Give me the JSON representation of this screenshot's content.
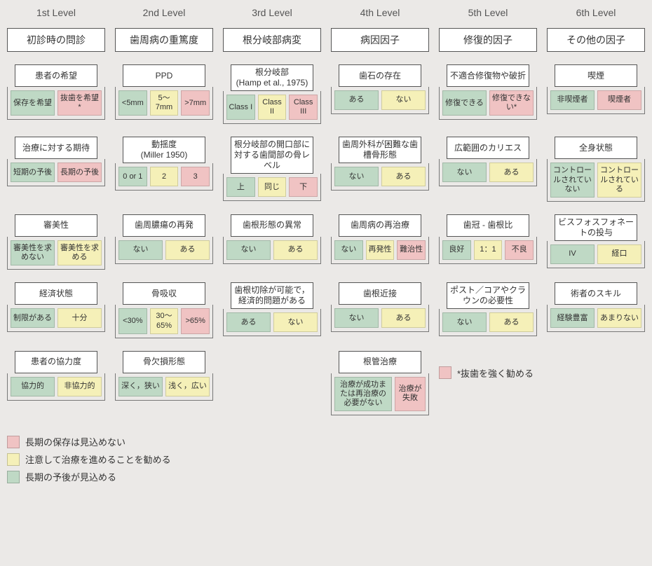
{
  "colors": {
    "green": "#bfd9c5",
    "yellow": "#f5f0b8",
    "red": "#f0c3c3",
    "bg": "#ebe9e7",
    "box_bg": "#ffffff",
    "border": "#555555"
  },
  "headers": [
    "1st Level",
    "2nd Level",
    "3rd Level",
    "4th Level",
    "5th Level",
    "6th Level"
  ],
  "levels": [
    "初診時の問診",
    "歯周病の重篤度",
    "根分岐部病変",
    "病因因子",
    "修復的因子",
    "その他の因子"
  ],
  "rows": [
    [
      {
        "title": "患者の希望",
        "opts": [
          {
            "t": "保存を希望",
            "c": "g"
          },
          {
            "t": "抜歯を希望*",
            "c": "r"
          }
        ]
      },
      {
        "title": "PPD",
        "opts": [
          {
            "t": "<5mm",
            "c": "g"
          },
          {
            "t": "5～7mm",
            "c": "y"
          },
          {
            "t": ">7mm",
            "c": "r"
          }
        ]
      },
      {
        "title": "根分岐部\n(Hamp et al., 1975)",
        "opts": [
          {
            "t": "Class I",
            "c": "g"
          },
          {
            "t": "Class II",
            "c": "y"
          },
          {
            "t": "Class III",
            "c": "r"
          }
        ]
      },
      {
        "title": "歯石の存在",
        "opts": [
          {
            "t": "ある",
            "c": "g"
          },
          {
            "t": "ない",
            "c": "y"
          }
        ]
      },
      {
        "title": "不適合修復物や破折",
        "opts": [
          {
            "t": "修復できる",
            "c": "g"
          },
          {
            "t": "修復できない*",
            "c": "r"
          }
        ]
      },
      {
        "title": "喫煙",
        "opts": [
          {
            "t": "非喫煙者",
            "c": "g"
          },
          {
            "t": "喫煙者",
            "c": "r"
          }
        ]
      }
    ],
    [
      {
        "title": "治療に対する期待",
        "opts": [
          {
            "t": "短期の予後",
            "c": "g"
          },
          {
            "t": "長期の予後",
            "c": "r"
          }
        ]
      },
      {
        "title": "動揺度\n(Miller 1950)",
        "opts": [
          {
            "t": "0 or 1",
            "c": "g"
          },
          {
            "t": "2",
            "c": "y"
          },
          {
            "t": "3",
            "c": "r"
          }
        ]
      },
      {
        "title": "根分岐部の開口部に対する歯間部の骨レベル",
        "opts": [
          {
            "t": "上",
            "c": "g"
          },
          {
            "t": "同じ",
            "c": "y"
          },
          {
            "t": "下",
            "c": "r"
          }
        ]
      },
      {
        "title": "歯周外科が困難な歯槽骨形態",
        "opts": [
          {
            "t": "ない",
            "c": "g"
          },
          {
            "t": "ある",
            "c": "y"
          }
        ]
      },
      {
        "title": "広範囲のカリエス",
        "opts": [
          {
            "t": "ない",
            "c": "g"
          },
          {
            "t": "ある",
            "c": "y"
          }
        ]
      },
      {
        "title": "全身状態",
        "opts": [
          {
            "t": "コントロールされていない",
            "c": "g"
          },
          {
            "t": "コントロールされている",
            "c": "y"
          }
        ]
      }
    ],
    [
      {
        "title": "審美性",
        "opts": [
          {
            "t": "審美性を求めない",
            "c": "g"
          },
          {
            "t": "審美性を求める",
            "c": "y"
          }
        ]
      },
      {
        "title": "歯周膿瘍の再発",
        "opts": [
          {
            "t": "ない",
            "c": "g"
          },
          {
            "t": "ある",
            "c": "y"
          }
        ]
      },
      {
        "title": "歯根形態の異常",
        "opts": [
          {
            "t": "ない",
            "c": "g"
          },
          {
            "t": "ある",
            "c": "y"
          }
        ]
      },
      {
        "title": "歯周病の再治療",
        "opts": [
          {
            "t": "ない",
            "c": "g"
          },
          {
            "t": "再発性",
            "c": "y"
          },
          {
            "t": "難治性",
            "c": "r"
          }
        ]
      },
      {
        "title": "歯冠 - 歯根比",
        "opts": [
          {
            "t": "良好",
            "c": "g"
          },
          {
            "t": "1：1",
            "c": "y"
          },
          {
            "t": "不良",
            "c": "r"
          }
        ]
      },
      {
        "title": "ビスフォスフォネートの投与",
        "opts": [
          {
            "t": "IV",
            "c": "g"
          },
          {
            "t": "経口",
            "c": "y"
          }
        ]
      }
    ],
    [
      {
        "title": "経済状態",
        "opts": [
          {
            "t": "制限がある",
            "c": "g"
          },
          {
            "t": "十分",
            "c": "y"
          }
        ]
      },
      {
        "title": "骨吸収",
        "opts": [
          {
            "t": "<30%",
            "c": "g"
          },
          {
            "t": "30～65%",
            "c": "y"
          },
          {
            "t": ">65%",
            "c": "r"
          }
        ]
      },
      {
        "title": "歯根切除が可能で，経済的問題がある",
        "opts": [
          {
            "t": "ある",
            "c": "g"
          },
          {
            "t": "ない",
            "c": "y"
          }
        ]
      },
      {
        "title": "歯根近接",
        "opts": [
          {
            "t": "ない",
            "c": "g"
          },
          {
            "t": "ある",
            "c": "y"
          }
        ]
      },
      {
        "title": "ポスト／コアやクラウンの必要性",
        "opts": [
          {
            "t": "ない",
            "c": "g"
          },
          {
            "t": "ある",
            "c": "y"
          }
        ]
      },
      {
        "title": "術者のスキル",
        "opts": [
          {
            "t": "経験豊富",
            "c": "g"
          },
          {
            "t": "あまりない",
            "c": "y"
          }
        ]
      }
    ],
    [
      {
        "title": "患者の協力度",
        "opts": [
          {
            "t": "協力的",
            "c": "g"
          },
          {
            "t": "非協力的",
            "c": "y"
          }
        ]
      },
      {
        "title": "骨欠損形態",
        "opts": [
          {
            "t": "深く，狭い",
            "c": "g"
          },
          {
            "t": "浅く，広い",
            "c": "y"
          }
        ]
      },
      null,
      {
        "title": "根管治療",
        "opts": [
          {
            "t": "治療が成功または再治療の必要がない",
            "c": "g",
            "wide": true
          },
          {
            "t": "治療が失敗",
            "c": "r"
          }
        ]
      },
      {
        "reco": true
      },
      null
    ]
  ],
  "reco_text": "*抜歯を強く勧める",
  "legend": [
    {
      "c": "r",
      "t": "長期の保存は見込めない"
    },
    {
      "c": "y",
      "t": "注意して治療を進めることを勧める"
    },
    {
      "c": "g",
      "t": "長期の予後が見込める"
    }
  ]
}
